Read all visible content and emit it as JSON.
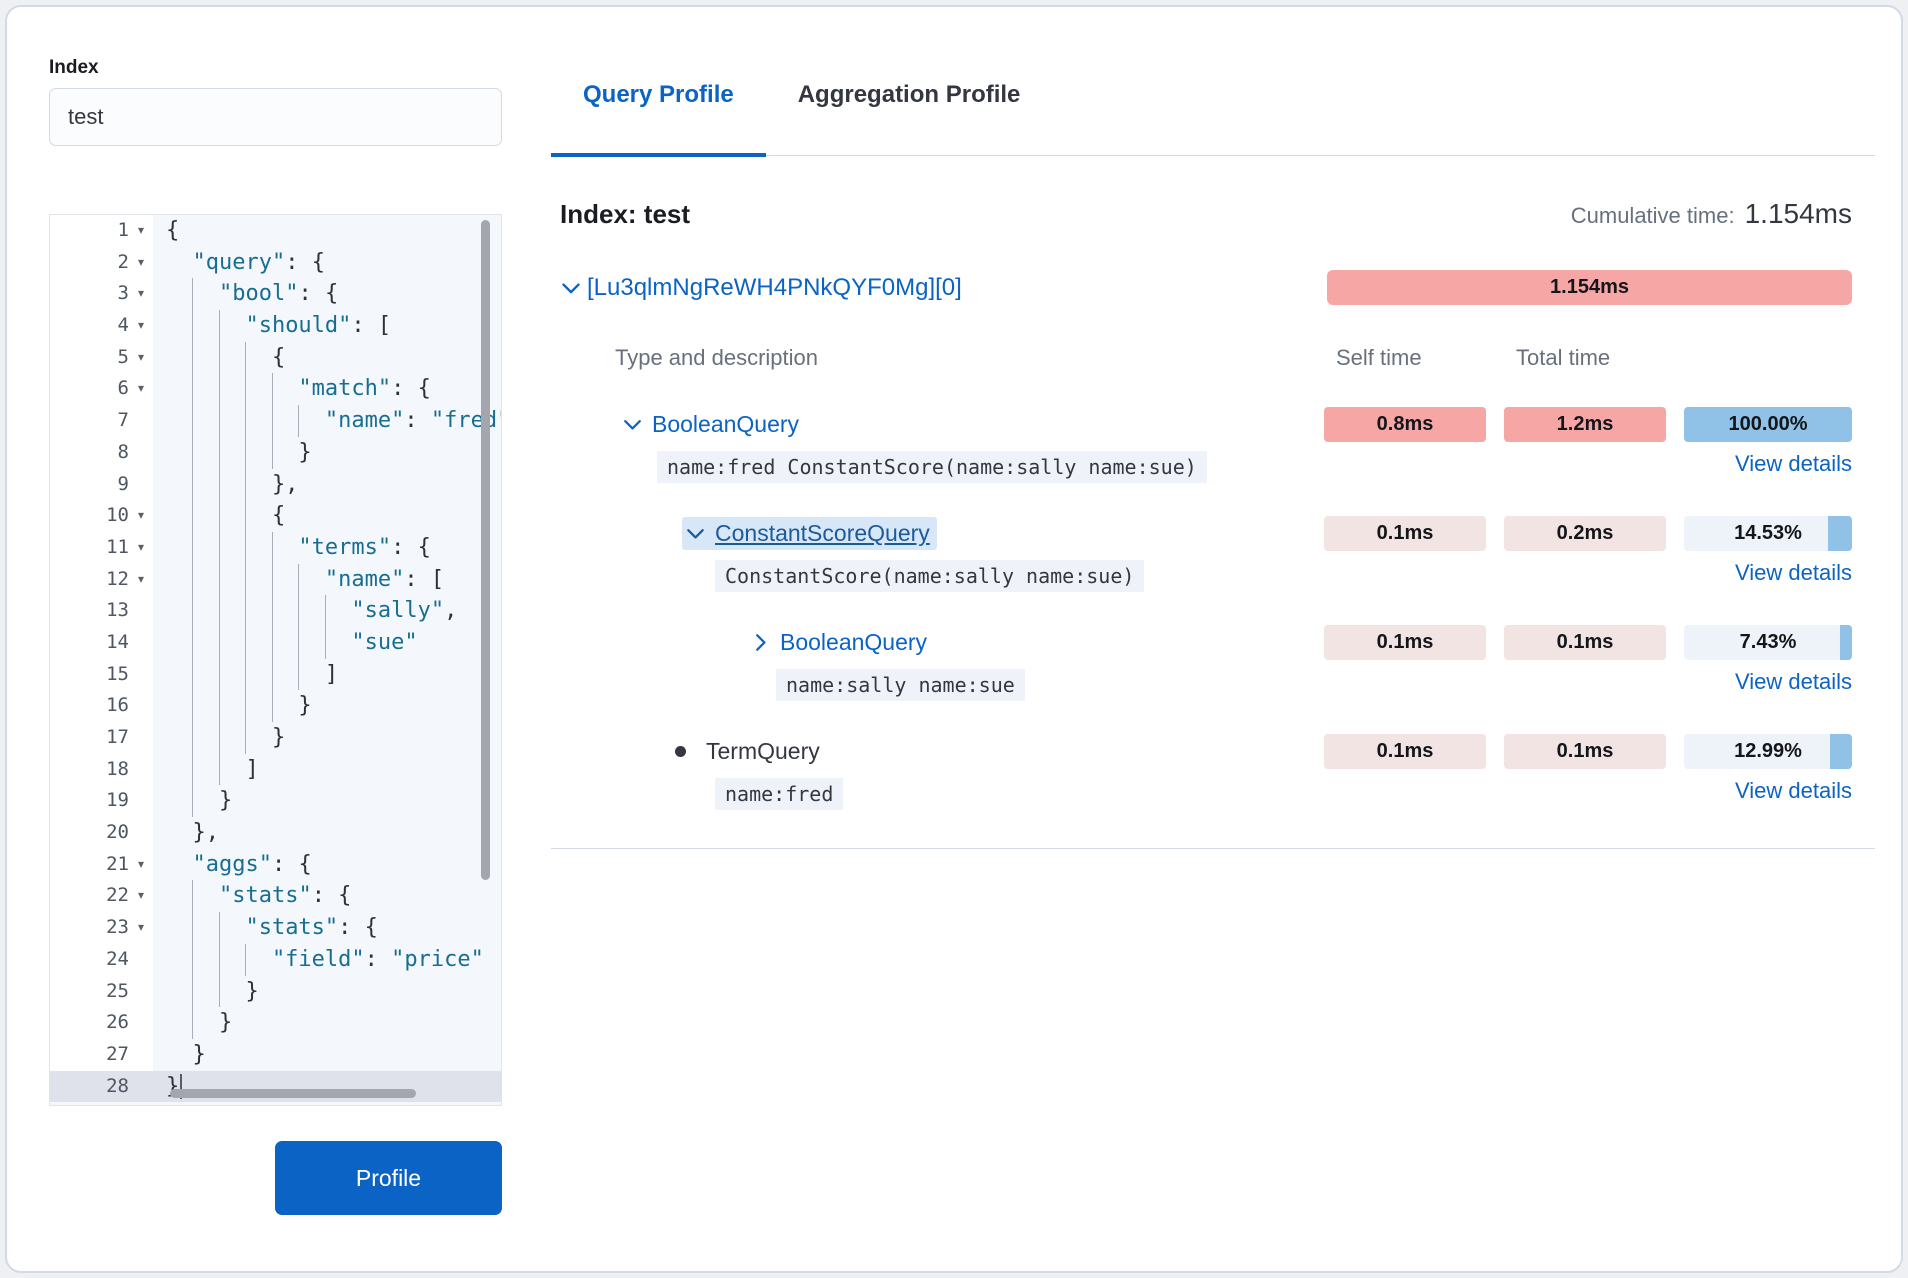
{
  "left": {
    "index_label": "Index",
    "index_value": "test",
    "profile_button": "Profile"
  },
  "tabs": {
    "query_profile": "Query Profile",
    "aggregation_profile": "Aggregation Profile"
  },
  "header": {
    "index_title": "Index: test",
    "cumulative_label": "Cumulative time:",
    "cumulative_value": "1.154ms"
  },
  "shard": {
    "id": "[Lu3qlmNgReWH4PNkQYF0Mg][0]",
    "time": "1.154ms"
  },
  "profile": {
    "columns": {
      "type": "Type and description",
      "self": "Self time",
      "total": "Total time"
    },
    "view_details_label": "View details",
    "rows": [
      {
        "level": 0,
        "icon": "chevron-down",
        "label": "BooleanQuery",
        "style": "link",
        "self": "0.8ms",
        "self_tone": "strong",
        "total": "1.2ms",
        "total_tone": "strong",
        "pct": 100.0,
        "pct_label": "100.00%",
        "snippet": "name:fred ConstantScore(name:sally name:sue)"
      },
      {
        "level": 1,
        "icon": "chevron-down",
        "label": "ConstantScoreQuery",
        "style": "selected",
        "self": "0.1ms",
        "self_tone": "light",
        "total": "0.2ms",
        "total_tone": "light",
        "pct": 14.53,
        "pct_label": "14.53%",
        "snippet": "ConstantScore(name:sally name:sue)"
      },
      {
        "level": 2,
        "icon": "chevron-right",
        "label": "BooleanQuery",
        "style": "link",
        "self": "0.1ms",
        "self_tone": "light",
        "total": "0.1ms",
        "total_tone": "light",
        "pct": 7.43,
        "pct_label": "7.43%",
        "snippet": "name:sally name:sue"
      },
      {
        "level": 1,
        "icon": "bullet",
        "label": "TermQuery",
        "style": "plain",
        "self": "0.1ms",
        "self_tone": "light",
        "total": "0.1ms",
        "total_tone": "light",
        "pct": 12.99,
        "pct_label": "12.99%",
        "snippet": "name:fred"
      }
    ]
  },
  "editor": {
    "lines": [
      {
        "n": 1,
        "fold": true,
        "text": "{"
      },
      {
        "n": 2,
        "fold": true,
        "text": "  \"query\": {"
      },
      {
        "n": 3,
        "fold": true,
        "text": "    \"bool\": {"
      },
      {
        "n": 4,
        "fold": true,
        "text": "      \"should\": ["
      },
      {
        "n": 5,
        "fold": true,
        "text": "        {"
      },
      {
        "n": 6,
        "fold": true,
        "text": "          \"match\": {"
      },
      {
        "n": 7,
        "fold": false,
        "text": "            \"name\": \"fred\""
      },
      {
        "n": 8,
        "fold": false,
        "text": "          }"
      },
      {
        "n": 9,
        "fold": false,
        "text": "        },"
      },
      {
        "n": 10,
        "fold": true,
        "text": "        {"
      },
      {
        "n": 11,
        "fold": true,
        "text": "          \"terms\": {"
      },
      {
        "n": 12,
        "fold": true,
        "text": "            \"name\": ["
      },
      {
        "n": 13,
        "fold": false,
        "text": "              \"sally\","
      },
      {
        "n": 14,
        "fold": false,
        "text": "              \"sue\""
      },
      {
        "n": 15,
        "fold": false,
        "text": "            ]"
      },
      {
        "n": 16,
        "fold": false,
        "text": "          }"
      },
      {
        "n": 17,
        "fold": false,
        "text": "        }"
      },
      {
        "n": 18,
        "fold": false,
        "text": "      ]"
      },
      {
        "n": 19,
        "fold": false,
        "text": "    }"
      },
      {
        "n": 20,
        "fold": false,
        "text": "  },"
      },
      {
        "n": 21,
        "fold": true,
        "text": "  \"aggs\": {"
      },
      {
        "n": 22,
        "fold": true,
        "text": "    \"stats\": {"
      },
      {
        "n": 23,
        "fold": true,
        "text": "      \"stats\": {"
      },
      {
        "n": 24,
        "fold": false,
        "text": "        \"field\": \"price\""
      },
      {
        "n": 25,
        "fold": false,
        "text": "      }"
      },
      {
        "n": 26,
        "fold": false,
        "text": "    }"
      },
      {
        "n": 27,
        "fold": false,
        "text": "  }"
      },
      {
        "n": 28,
        "fold": false,
        "text": "}",
        "active": true,
        "cursor": true
      }
    ]
  },
  "colors": {
    "accent_blue": "#0b63c5",
    "badge_pink_strong": "#f7a6a6",
    "badge_pink_light": "#f1e4e2",
    "badge_pct_bg": "#eef3f9",
    "badge_pct_fill": "#90c2e7",
    "selected_highlight": "#d7e7f7",
    "code_string": "#186e92"
  }
}
